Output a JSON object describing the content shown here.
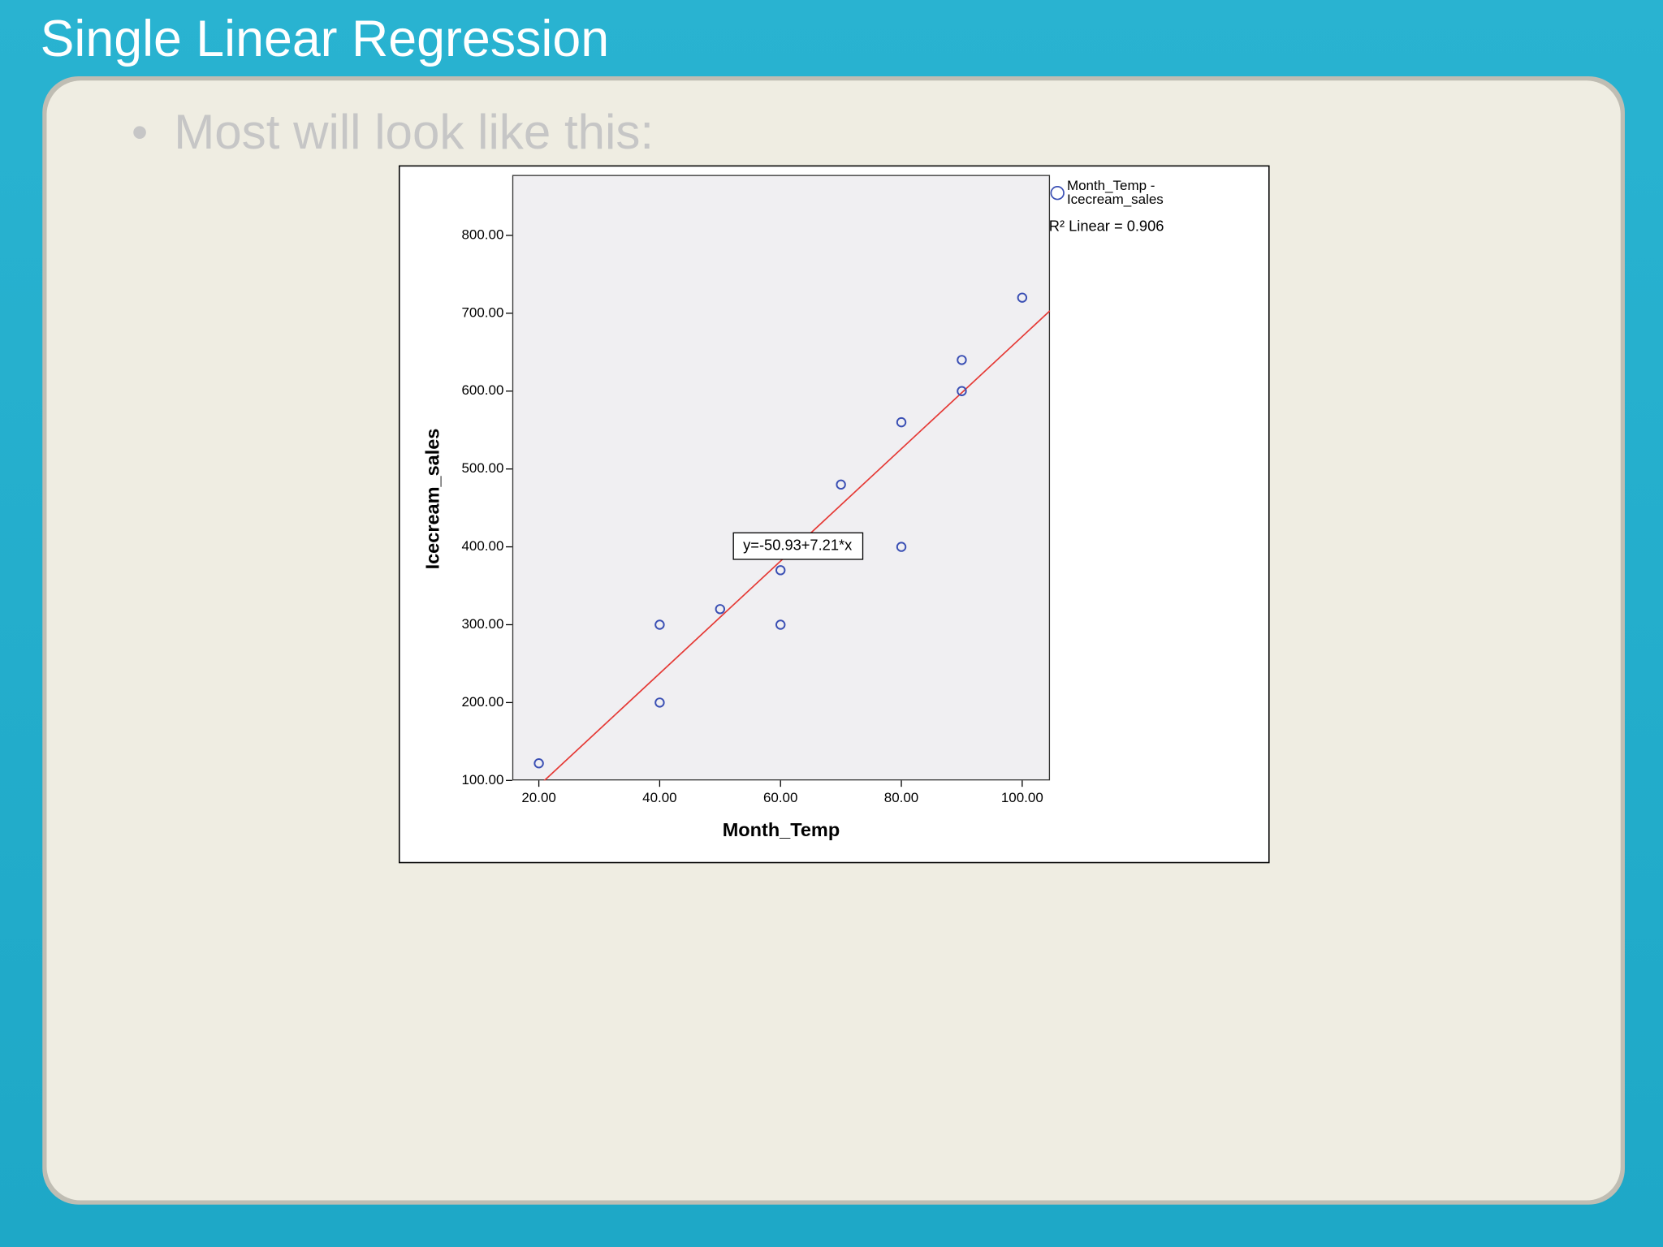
{
  "slide": {
    "title": "Single Linear Regression",
    "bullet": "Most will look like this:"
  },
  "chart_data": {
    "type": "scatter",
    "x_label": "Month_Temp",
    "y_label": "Icecream_sales",
    "series": [
      {
        "name": "Month_Temp - Icecream_sales",
        "color": "#3a4fb4",
        "x": [
          20,
          40,
          40,
          50,
          60,
          60,
          70,
          80,
          80,
          90,
          90,
          100
        ],
        "values": [
          122,
          300,
          200,
          320,
          370,
          300,
          480,
          560,
          400,
          640,
          600,
          720
        ]
      }
    ],
    "fit_line": {
      "intercept": -50.93,
      "slope": 7.21,
      "color": "#e53935",
      "label": "y=-50.93+7.21*x"
    },
    "r2_label": "R² Linear = 0.906",
    "xlim": [
      15.6,
      104.6
    ],
    "xticks": [
      {
        "value": 20,
        "label": "20.00"
      },
      {
        "value": 40,
        "label": "40.00"
      },
      {
        "value": 60,
        "label": "60.00"
      },
      {
        "value": 80,
        "label": "80.00"
      },
      {
        "value": 100,
        "label": "100.00"
      }
    ],
    "ylim": [
      100,
      877.6
    ],
    "yticks": [
      {
        "value": 100,
        "label": "100.00"
      },
      {
        "value": 200,
        "label": "200.00"
      },
      {
        "value": 300,
        "label": "300.00"
      },
      {
        "value": 400,
        "label": "400.00"
      },
      {
        "value": 500,
        "label": "500.00"
      },
      {
        "value": 600,
        "label": "600.00"
      },
      {
        "value": 700,
        "label": "700.00"
      },
      {
        "value": 800,
        "label": "800.00"
      }
    ],
    "grid": false
  }
}
